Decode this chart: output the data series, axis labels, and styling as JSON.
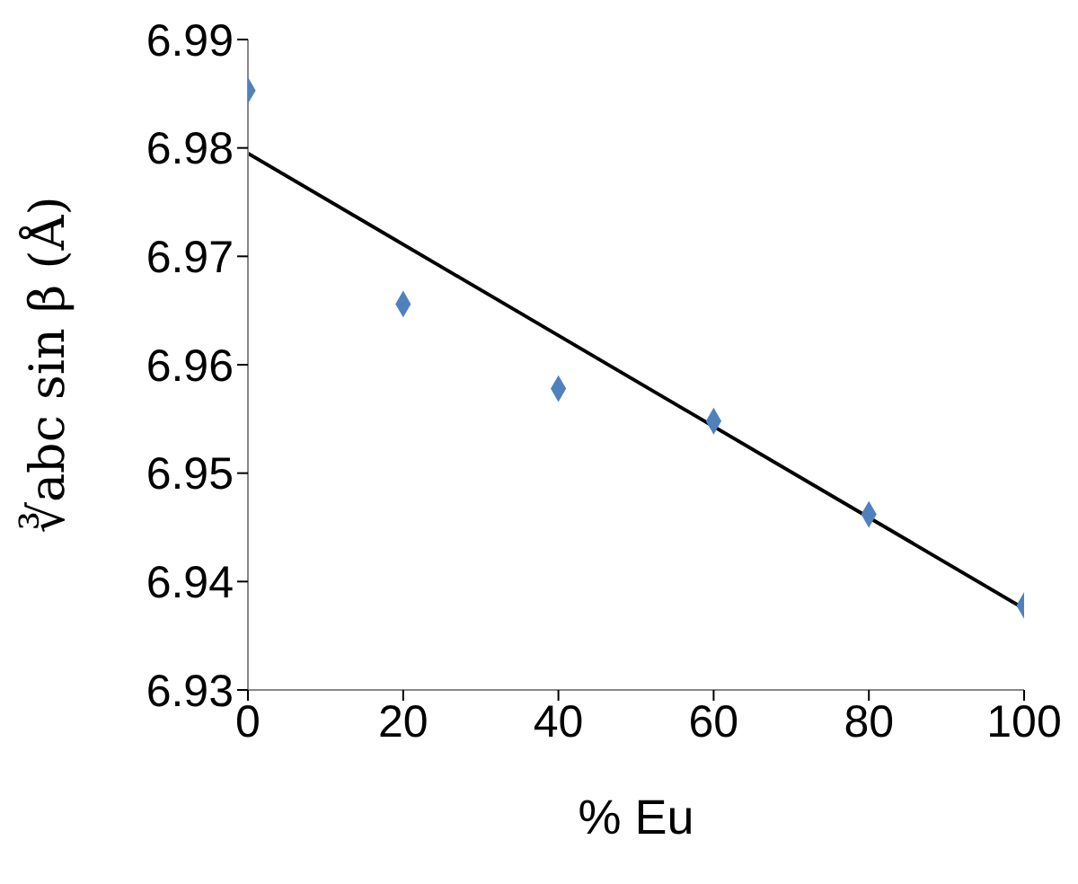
{
  "chart_data": {
    "type": "scatter",
    "xlabel": "% Eu",
    "ylabel": "∛abc sin β (Å)",
    "xlim": [
      0,
      100
    ],
    "xticks": [
      0,
      20,
      40,
      60,
      80,
      100
    ],
    "ylim": [
      6.93,
      6.99
    ],
    "yticks": [
      6.93,
      6.94,
      6.95,
      6.96,
      6.97,
      6.98,
      6.99
    ],
    "grid": false,
    "marker": "diamond",
    "series": [
      {
        "color": "#4f81bd",
        "x": [
          0,
          20,
          40,
          60,
          80,
          100
        ],
        "values": [
          6.9853,
          6.9656,
          6.9578,
          6.9548,
          6.9462,
          6.9378
        ]
      },
      {
        "type": "line",
        "color": "#000000",
        "marker": "none",
        "x": [
          0,
          100
        ],
        "values": [
          6.9795,
          6.9375
        ]
      }
    ]
  }
}
